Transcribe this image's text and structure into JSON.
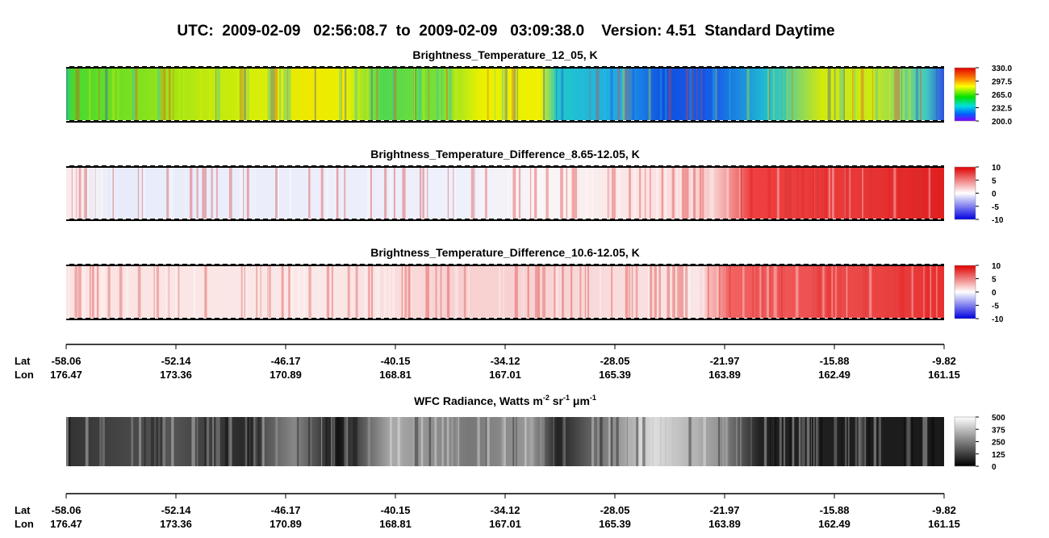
{
  "title": "UTC:  2009-02-09   02:56:08.7  to  2009-02-09   03:09:38.0    Version: 4.51  Standard Daytime",
  "chart_data": [
    {
      "type": "heatmap",
      "title": "Brightness_Temperature_12_05, K",
      "colormap": "rainbow",
      "clim": [
        200,
        330
      ],
      "cticks": [
        {
          "value": 330,
          "label": "330.0"
        },
        {
          "value": 297.5,
          "label": "297.5"
        },
        {
          "value": 265,
          "label": "265.0"
        },
        {
          "value": 232.5,
          "label": "232.5"
        },
        {
          "value": 200,
          "label": "200.0"
        }
      ]
    },
    {
      "type": "heatmap",
      "title": "Brightness_Temperature_Difference_8.65-12.05, K",
      "colormap": "bwr",
      "clim": [
        -10,
        10
      ],
      "cticks": [
        10,
        5,
        0,
        -5,
        -10
      ]
    },
    {
      "type": "heatmap",
      "title": "Brightness_Temperature_Difference_10.6-12.05, K",
      "colormap": "bwr",
      "clim": [
        -10,
        10
      ],
      "cticks": [
        10,
        5,
        0,
        -5,
        -10
      ]
    },
    {
      "type": "heatmap",
      "title_parts": [
        "WFC Radiance, Watts m",
        "-2",
        " sr",
        "-1",
        " μm",
        "-1"
      ],
      "colormap": "gray",
      "clim": [
        0,
        500
      ],
      "cticks": [
        500,
        375,
        250,
        125,
        0
      ]
    }
  ],
  "x_axes": [
    {
      "lat_label": "Lat",
      "lon_label": "Lon",
      "lat": [
        -58.06,
        -52.14,
        -46.17,
        -40.15,
        -34.12,
        -28.05,
        -21.97,
        -15.88,
        -9.82
      ],
      "lon": [
        176.47,
        173.36,
        170.89,
        168.81,
        167.01,
        165.39,
        163.89,
        162.49,
        161.15
      ]
    },
    {
      "lat_label": "Lat",
      "lon_label": "Lon",
      "lat": [
        -58.06,
        -52.14,
        -46.17,
        -40.15,
        -34.12,
        -28.05,
        -21.97,
        -15.88,
        -9.82
      ],
      "lon": [
        176.47,
        173.36,
        170.89,
        168.81,
        167.01,
        165.39,
        163.89,
        162.49,
        161.15
      ]
    }
  ]
}
